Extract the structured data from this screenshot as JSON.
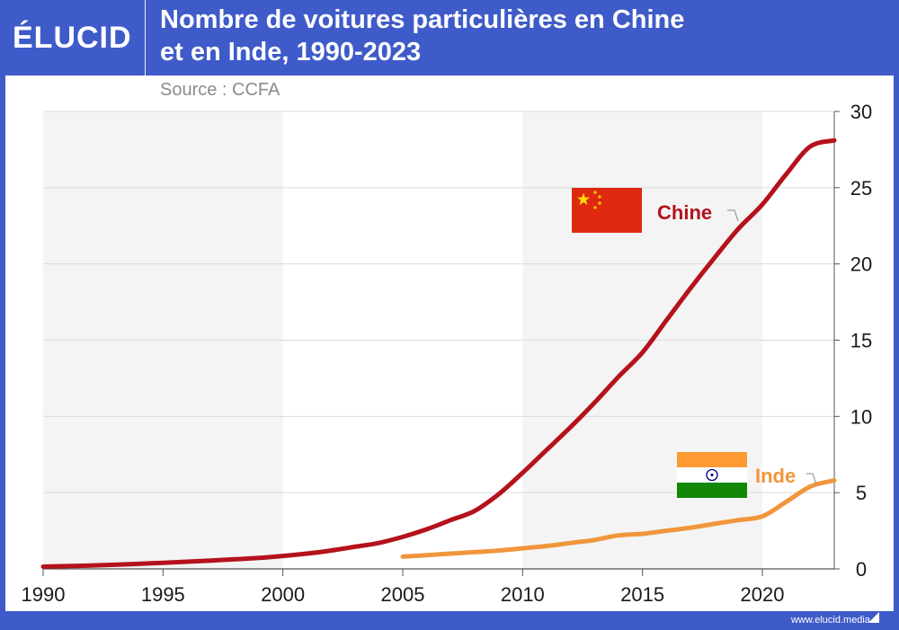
{
  "brand": "ÉLUCID",
  "title_line1": "Nombre de voitures particulières en Chine",
  "title_line2": "et en Inde, 1990-2023",
  "source": "Source : CCFA",
  "footer": "www.elucid.media",
  "colors": {
    "background": "#3f5bc9",
    "china": "#b5121b",
    "india": "#f0963c",
    "band": "#f4f4f4"
  },
  "icons": [
    "china-flag-icon",
    "india-flag-icon"
  ],
  "chart_data": {
    "type": "line",
    "title": "Nombre de voitures particulières en Chine et en Inde, 1990-2023",
    "xlim": [
      1990,
      2023
    ],
    "ylim": [
      0,
      30
    ],
    "x_ticks": [
      1990,
      1995,
      2000,
      2005,
      2010,
      2015,
      2020
    ],
    "y_ticks": [
      0,
      5,
      10,
      15,
      20,
      25,
      30
    ],
    "grid": "horizontal",
    "y_axis_position": "right",
    "series": [
      {
        "name": "Chine",
        "color": "#b5121b",
        "x": [
          1990,
          1991,
          1992,
          1993,
          1994,
          1995,
          1996,
          1997,
          1998,
          1999,
          2000,
          2001,
          2002,
          2003,
          2004,
          2005,
          2006,
          2007,
          2008,
          2009,
          2010,
          2011,
          2012,
          2013,
          2014,
          2015,
          2016,
          2017,
          2018,
          2019,
          2020,
          2021,
          2022,
          2023
        ],
        "values": [
          0.15,
          0.18,
          0.22,
          0.27,
          0.33,
          0.4,
          0.47,
          0.55,
          0.63,
          0.72,
          0.85,
          1.0,
          1.2,
          1.45,
          1.7,
          2.1,
          2.6,
          3.2,
          3.8,
          4.9,
          6.3,
          7.8,
          9.3,
          10.9,
          12.6,
          14.2,
          16.3,
          18.4,
          20.4,
          22.3,
          23.9,
          25.9,
          27.7,
          28.1
        ]
      },
      {
        "name": "Inde",
        "color": "#f0963c",
        "x": [
          2005,
          2006,
          2007,
          2008,
          2009,
          2010,
          2011,
          2012,
          2013,
          2014,
          2015,
          2016,
          2017,
          2018,
          2019,
          2020,
          2021,
          2022,
          2023
        ],
        "values": [
          0.8,
          0.9,
          1.0,
          1.1,
          1.2,
          1.35,
          1.5,
          1.7,
          1.9,
          2.2,
          2.3,
          2.5,
          2.7,
          2.95,
          3.2,
          3.45,
          4.4,
          5.4,
          5.8
        ]
      }
    ]
  }
}
